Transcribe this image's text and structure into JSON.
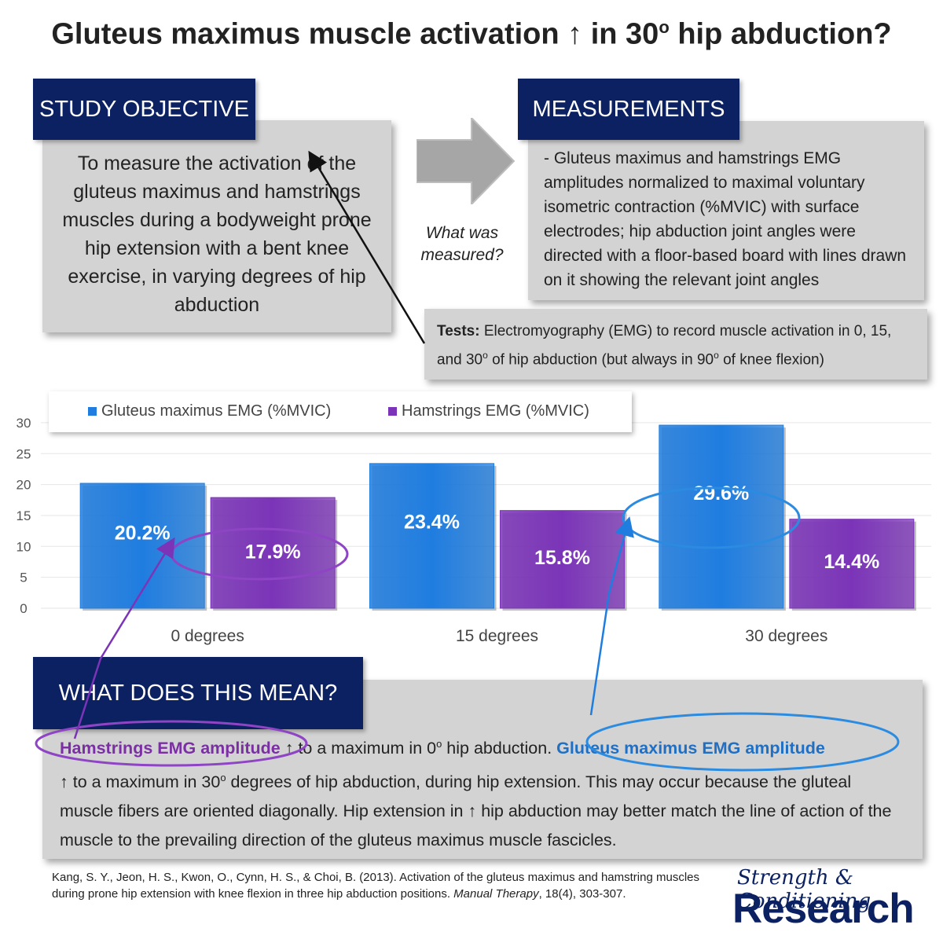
{
  "title": {
    "main": "Gluteus maximus muscle activation ↑ in 30",
    "sup": "o",
    "rest": " hip abduction?"
  },
  "objective": {
    "label": "STUDY OBJECTIVE",
    "text": "To measure the activation of the gluteus maximus and hamstrings muscles during a bodyweight prone hip extension with a bent knee exercise, in varying degrees of hip abduction"
  },
  "measured_question": "What was measured?",
  "measurements": {
    "label": "MEASUREMENTS",
    "text": "- Gluteus maximus and hamstrings EMG amplitudes normalized to maximal voluntary isometric contraction (%MVIC) with surface electrodes; hip abduction joint angles were directed with a floor-based board with lines drawn on it showing the relevant joint angles"
  },
  "tests": {
    "label": "Tests:",
    "text1": " Electromyography (EMG) to record muscle activation in 0, 15, and 30",
    "sup1": "o",
    "text2": " of hip abduction (but always in 90",
    "sup2": "o",
    "text3": " of knee flexion)"
  },
  "chart_data": {
    "type": "bar",
    "categories": [
      "0 degrees",
      "15 degrees",
      "30 degrees"
    ],
    "series": [
      {
        "name": "Gluteus maximus EMG (%MVIC)",
        "values": [
          20.2,
          23.4,
          29.6
        ],
        "labels": [
          "20.2%",
          "23.4%",
          "29.6%"
        ],
        "color": "#1f7de0"
      },
      {
        "name": "Hamstrings EMG (%MVIC)",
        "values": [
          17.9,
          15.8,
          14.4
        ],
        "labels": [
          "17.9%",
          "15.8%",
          "14.4%"
        ],
        "color": "#7b34b8"
      }
    ],
    "yticks": [
      0,
      5,
      10,
      15,
      20,
      25,
      30
    ],
    "ylim": [
      0,
      30
    ],
    "grid": true,
    "legend": "top-left"
  },
  "meaning": {
    "label": "WHAT DOES THIS MEAN?",
    "ham_phrase": "Hamstrings EMG amplitude",
    "part1": " ↑ to a maximum in 0",
    "sup1": "o",
    "part2": " hip abduction. ",
    "glute_phrase": "Gluteus maximus EMG amplitude",
    "part3": " ↑ to a maximum in 30",
    "sup2": "o",
    "part4": " degrees of hip abduction, during hip extension. This may occur because the gluteal muscle fibers are oriented diagonally. Hip extension in ↑ hip abduction may better match the line of action of the muscle to the prevailing direction of the gluteus maximus muscle fascicles."
  },
  "citation": {
    "text": "Kang, S. Y., Jeon, H. S., Kwon, O., Cynn, H. S., & Choi, B. (2013). Activation of the gluteus maximus and hamstring muscles during prone hip extension with knee flexion in three hip abduction positions. ",
    "journal": "Manual Therapy",
    "rest": ", 18(4), 303-307."
  },
  "logo": {
    "top": "Strength & Conditioning",
    "bottom": "Research"
  },
  "colors": {
    "navy": "#0c2161",
    "glute": "#1f7de0",
    "ham": "#7b34b8",
    "panel": "#d3d3d3"
  }
}
